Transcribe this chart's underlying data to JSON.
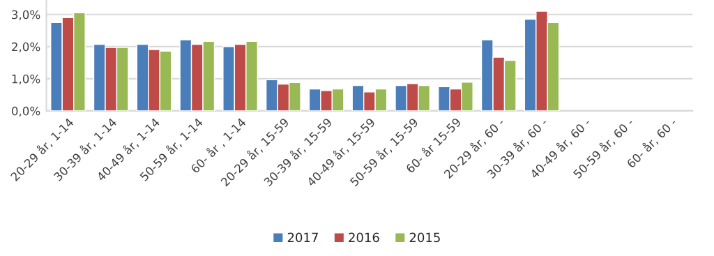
{
  "chart_data": {
    "type": "bar",
    "categories": [
      "20-29 år, 1-14",
      "30-39 år, 1-14",
      "40-49 år, 1-14",
      "50-59 år, 1-14",
      "60- år , 1-14",
      "20-29 år, 15-59",
      "30-39 år, 15-59",
      "40-49 år, 15-59",
      "50-59 år, 15-59",
      "60- år 15-59",
      "20-29 år, 60 -",
      "30-39 år, 60 -",
      "40-49 år, 60 -",
      "50-59 år, 60 -",
      "60- år, 60 -"
    ],
    "series": [
      {
        "name": "2017",
        "color": "#4a7ebb",
        "values": [
          2.75,
          2.07,
          2.07,
          2.21,
          2.0,
          0.97,
          0.68,
          0.79,
          0.79,
          0.75,
          2.21,
          2.85,
          null,
          null,
          null
        ]
      },
      {
        "name": "2016",
        "color": "#be4b48",
        "values": [
          2.9,
          1.97,
          1.91,
          2.07,
          2.07,
          0.83,
          0.63,
          0.59,
          0.85,
          0.68,
          1.67,
          3.1,
          null,
          null,
          null
        ]
      },
      {
        "name": "2015",
        "color": "#98b954",
        "values": [
          3.05,
          1.97,
          1.86,
          2.16,
          2.16,
          0.88,
          0.68,
          0.68,
          0.79,
          0.89,
          1.57,
          2.75,
          null,
          null,
          null
        ]
      }
    ],
    "ylim": [
      0,
      3.45
    ],
    "yticks": [
      {
        "value": 0,
        "label": "0,0%"
      },
      {
        "value": 1,
        "label": "1,0%"
      },
      {
        "value": 2,
        "label": "2,0%"
      },
      {
        "value": 3,
        "label": "3,0%"
      }
    ],
    "grid": "y",
    "legend": "bottom"
  }
}
